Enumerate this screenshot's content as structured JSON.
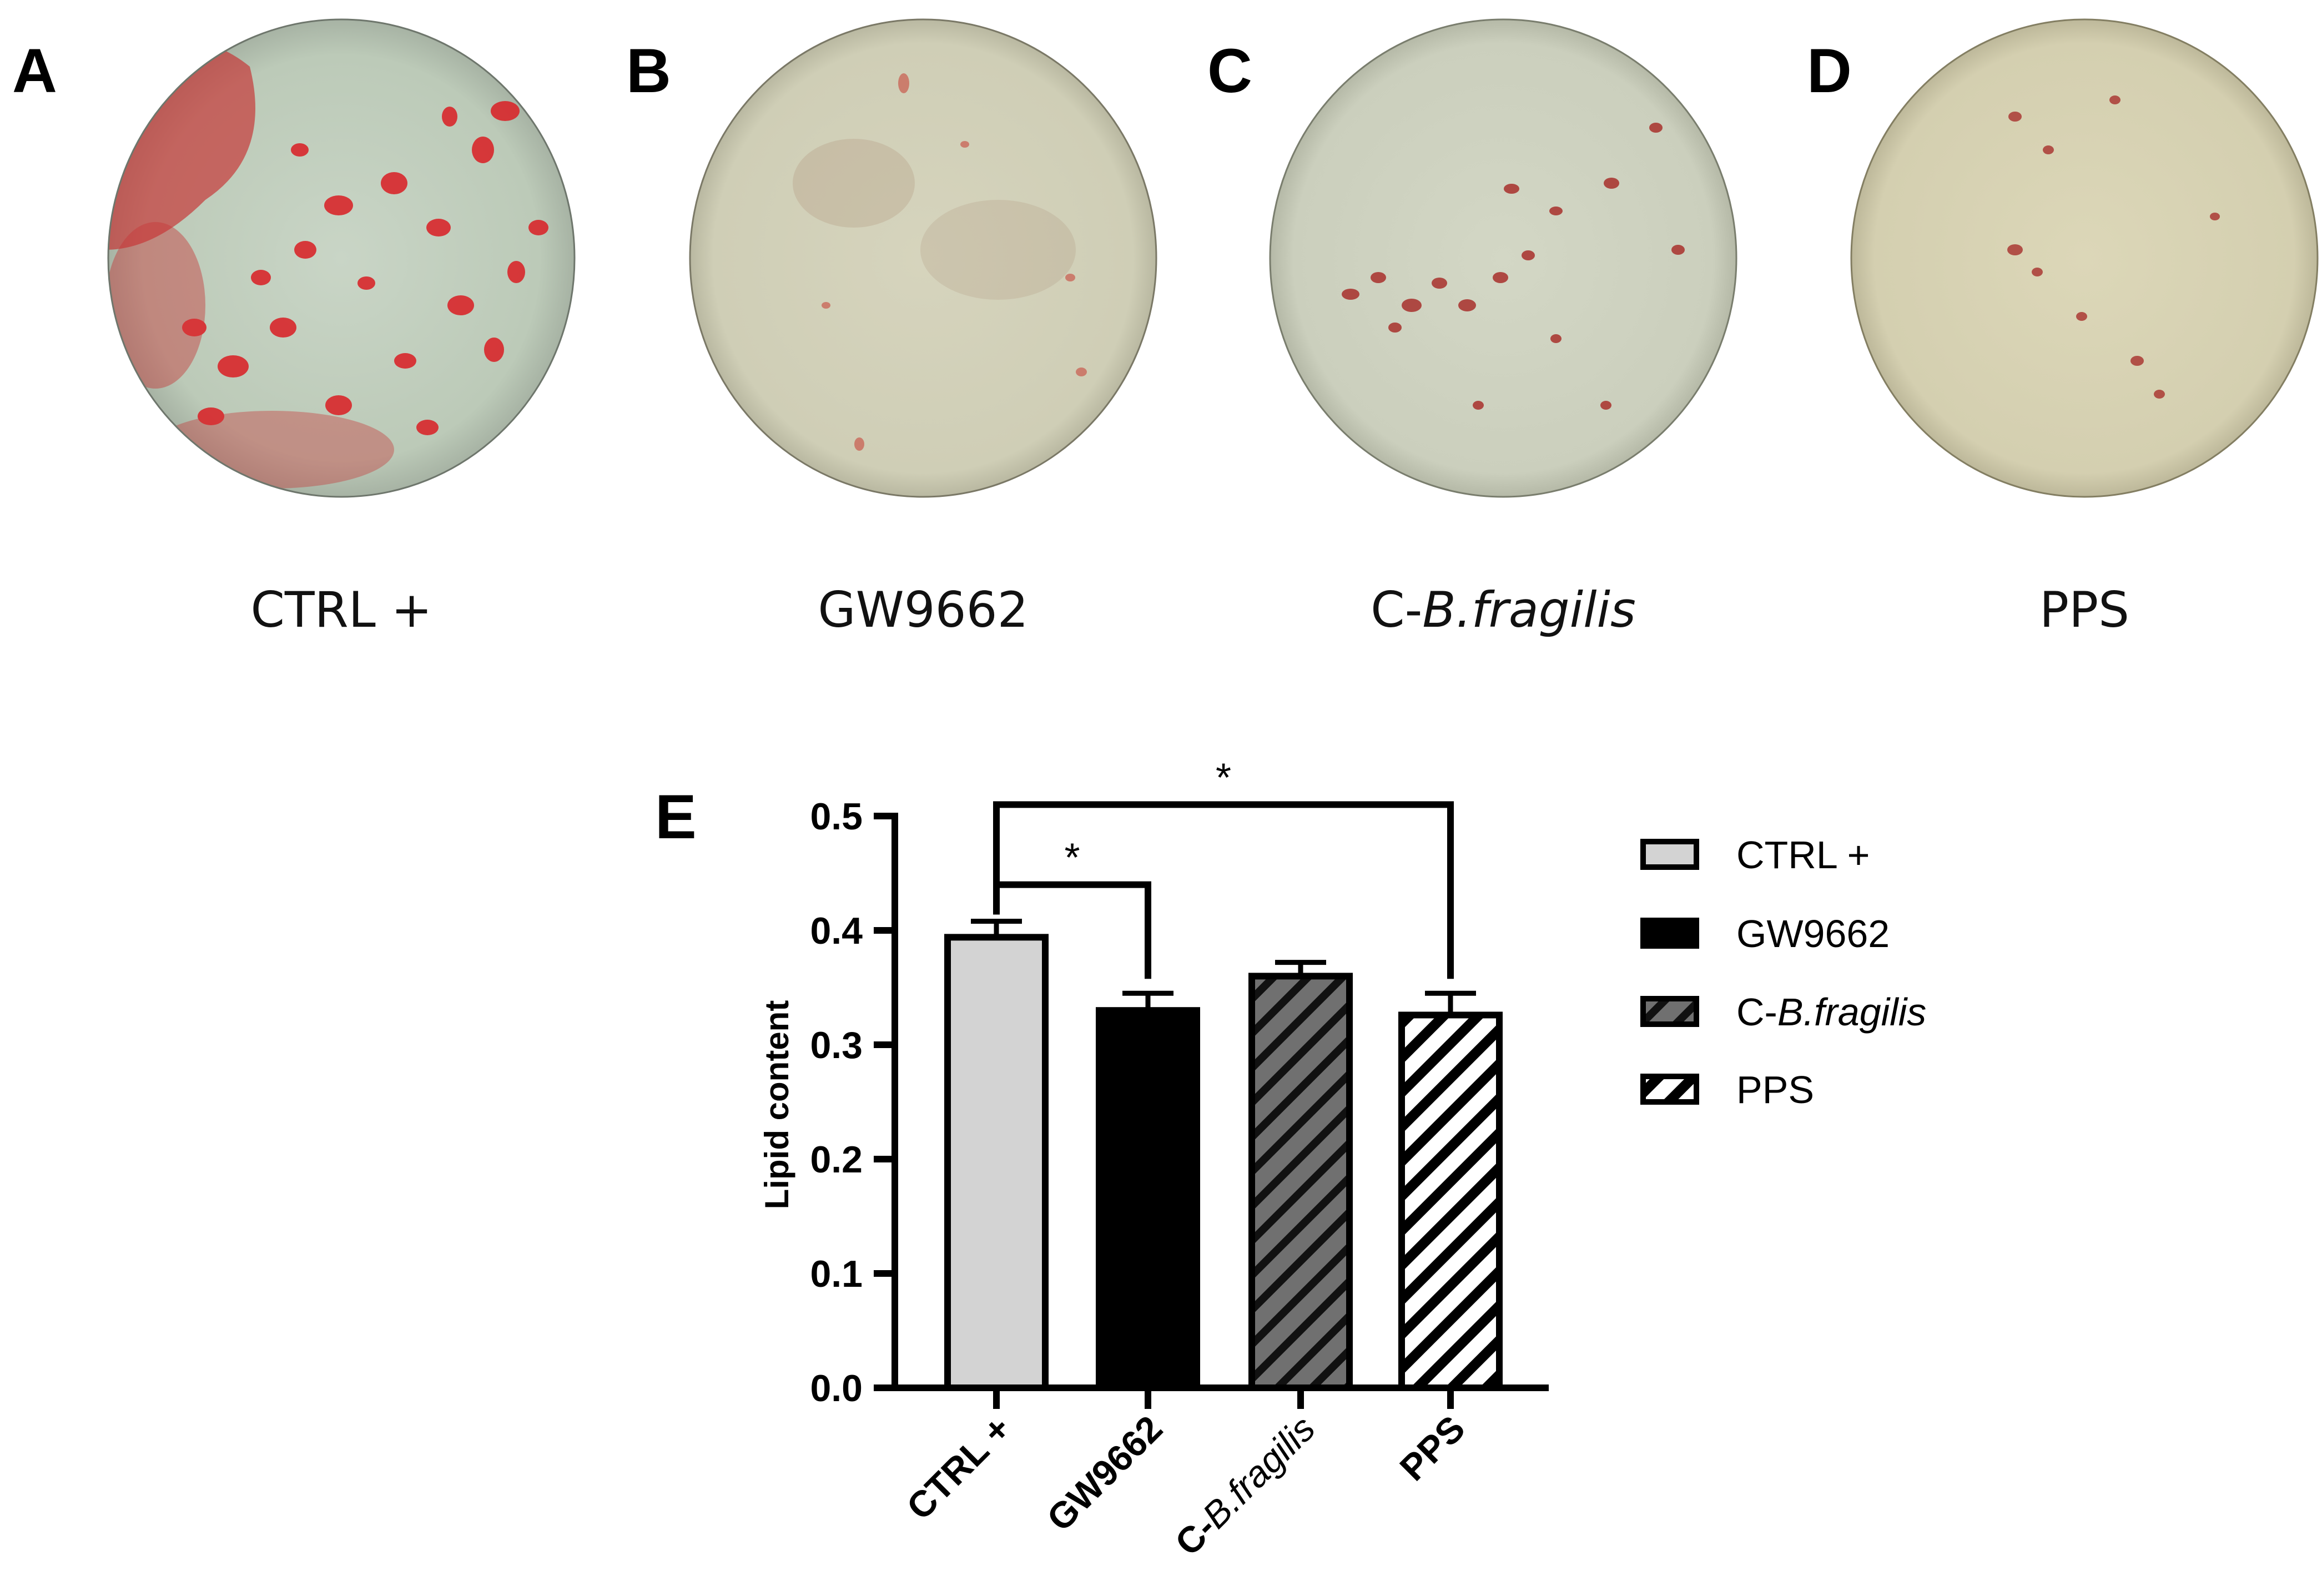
{
  "panels": [
    {
      "letter": "A",
      "caption": "CTRL +",
      "caption_italic": ""
    },
    {
      "letter": "B",
      "caption": "GW9662",
      "caption_italic": ""
    },
    {
      "letter": "C",
      "caption": "C-",
      "caption_italic": "B.fragilis"
    },
    {
      "letter": "D",
      "caption": "PPS",
      "caption_italic": ""
    }
  ],
  "chart_letter": "E",
  "chart_data": {
    "type": "bar",
    "title": "",
    "xlabel": "",
    "ylabel": "Lipid content",
    "ylim": [
      0,
      0.5
    ],
    "yticks": [
      "0.0",
      "0.1",
      "0.2",
      "0.3",
      "0.4",
      "0.5"
    ],
    "grid": false,
    "legend_position": "right",
    "categories": [
      "CTRL +",
      "GW9662",
      "C-B.fragilis",
      "PPS"
    ],
    "category_parts": [
      {
        "plain": "CTRL +",
        "italic": ""
      },
      {
        "plain": "GW9662",
        "italic": ""
      },
      {
        "plain": "C-",
        "italic": "B.fragilis"
      },
      {
        "plain": "PPS",
        "italic": ""
      }
    ],
    "values": [
      0.394,
      0.33,
      0.36,
      0.326
    ],
    "errors": [
      0.014,
      0.015,
      0.012,
      0.019
    ],
    "fills": [
      "#d3d3d3",
      "#000000",
      "hatch-dark",
      "hatch-white"
    ],
    "legend": [
      {
        "plain": "CTRL +",
        "italic": ""
      },
      {
        "plain": "GW9662",
        "italic": ""
      },
      {
        "plain": "C-",
        "italic": "B.fragilis"
      },
      {
        "plain": "PPS",
        "italic": ""
      }
    ],
    "significance": [
      {
        "from": 0,
        "to": 1,
        "label": "*",
        "y": 0.44
      },
      {
        "from": 0,
        "to": 3,
        "label": "*",
        "y": 0.51
      }
    ]
  }
}
